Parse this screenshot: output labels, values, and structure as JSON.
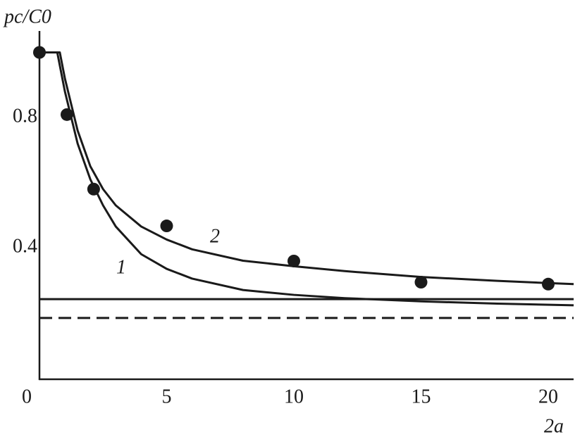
{
  "chart_data": {
    "type": "line",
    "xlabel": "2a",
    "ylabel": "pc/C0",
    "xlim": [
      0,
      21
    ],
    "ylim": [
      0,
      1.07
    ],
    "xticks": [
      0,
      5,
      10,
      15,
      20
    ],
    "yticks": [
      0.4,
      0.8
    ],
    "grid": false,
    "series": [
      {
        "name": "1",
        "type": "line",
        "color": "#1a1a1a",
        "x": [
          0,
          0.7,
          1,
          1.5,
          2,
          2.5,
          3,
          4,
          5,
          6,
          8,
          10,
          12,
          15,
          18,
          21
        ],
        "values": [
          1.0,
          1.0,
          0.88,
          0.72,
          0.61,
          0.53,
          0.465,
          0.38,
          0.335,
          0.305,
          0.27,
          0.255,
          0.245,
          0.235,
          0.228,
          0.223
        ]
      },
      {
        "name": "2",
        "type": "line",
        "color": "#1a1a1a",
        "x": [
          0,
          0.8,
          1,
          1.5,
          2,
          2.5,
          3,
          4,
          5,
          6,
          8,
          10,
          12,
          15,
          18,
          21
        ],
        "values": [
          1.0,
          1.0,
          0.92,
          0.76,
          0.65,
          0.58,
          0.53,
          0.465,
          0.425,
          0.395,
          0.36,
          0.343,
          0.328,
          0.31,
          0.298,
          0.288
        ]
      },
      {
        "type": "scatter",
        "color": "#1a1a1a",
        "x": [
          0,
          1.08,
          2.13,
          5,
          10,
          15,
          20
        ],
        "values": [
          1.0,
          0.809,
          0.58,
          0.467,
          0.359,
          0.294,
          0.288
        ]
      }
    ],
    "hlines": [
      {
        "value": 0.242,
        "style": "solid",
        "color": "#1a1a1a"
      },
      {
        "value": 0.184,
        "style": "dashed",
        "color": "#1a1a1a"
      }
    ]
  }
}
